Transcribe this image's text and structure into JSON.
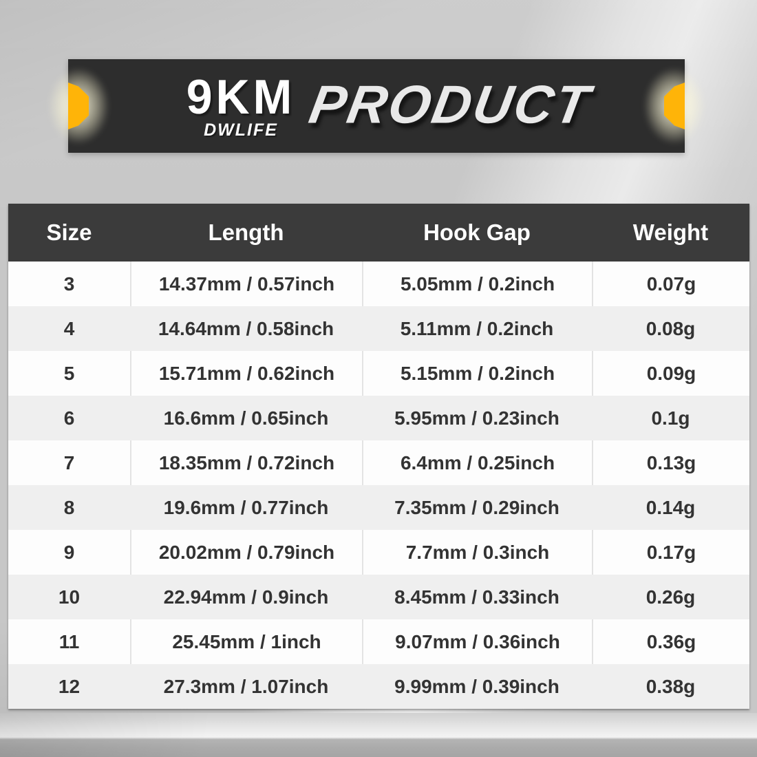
{
  "banner": {
    "brand": "9KM",
    "brand_sub": "DWLIFE",
    "title": "PRODUCT"
  },
  "colors": {
    "accent": "#ffb408",
    "banner_bg": "#2d2d2d",
    "header_bg": "#3b3b3b",
    "header_text": "#ffffff",
    "title_text": "#e9e9e9",
    "row_bg": "#fdfdfd",
    "row_alt_bg": "#efefef",
    "cell_text": "#333333"
  },
  "table": {
    "columns": [
      "Size",
      "Length",
      "Hook Gap",
      "Weight"
    ],
    "rows": [
      [
        "3",
        "14.37mm / 0.57inch",
        "5.05mm / 0.2inch",
        "0.07g"
      ],
      [
        "4",
        "14.64mm / 0.58inch",
        "5.11mm / 0.2inch",
        "0.08g"
      ],
      [
        "5",
        "15.71mm / 0.62inch",
        "5.15mm / 0.2inch",
        "0.09g"
      ],
      [
        "6",
        "16.6mm / 0.65inch",
        "5.95mm / 0.23inch",
        "0.1g"
      ],
      [
        "7",
        "18.35mm / 0.72inch",
        "6.4mm / 0.25inch",
        "0.13g"
      ],
      [
        "8",
        "19.6mm / 0.77inch",
        "7.35mm / 0.29inch",
        "0.14g"
      ],
      [
        "9",
        "20.02mm / 0.79inch",
        "7.7mm / 0.3inch",
        "0.17g"
      ],
      [
        "10",
        "22.94mm / 0.9inch",
        "8.45mm / 0.33inch",
        "0.26g"
      ],
      [
        "11",
        "25.45mm / 1inch",
        "9.07mm / 0.36inch",
        "0.36g"
      ],
      [
        "12",
        "27.3mm / 1.07inch",
        "9.99mm / 0.39inch",
        "0.38g"
      ]
    ]
  }
}
